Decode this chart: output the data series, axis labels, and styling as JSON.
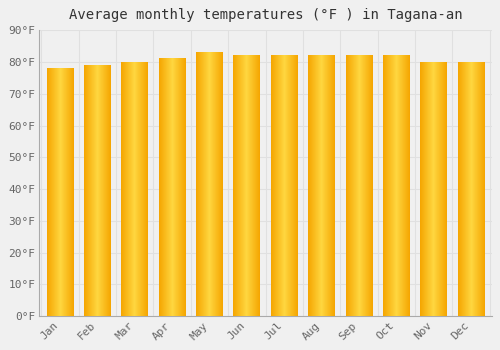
{
  "title": "Average monthly temperatures (°F ) in Tagana-an",
  "months": [
    "Jan",
    "Feb",
    "Mar",
    "Apr",
    "May",
    "Jun",
    "Jul",
    "Aug",
    "Sep",
    "Oct",
    "Nov",
    "Dec"
  ],
  "values": [
    78,
    79,
    80,
    81,
    83,
    82,
    82,
    82,
    82,
    82,
    80,
    80
  ],
  "bar_color_dark": "#F5A500",
  "bar_color_light": "#FFD740",
  "ylim": [
    0,
    90
  ],
  "yticks": [
    0,
    10,
    20,
    30,
    40,
    50,
    60,
    70,
    80,
    90
  ],
  "background_color": "#f0f0f0",
  "grid_color": "#e0e0e0",
  "title_fontsize": 10,
  "tick_fontsize": 8,
  "font_family": "monospace",
  "bar_width": 0.72
}
